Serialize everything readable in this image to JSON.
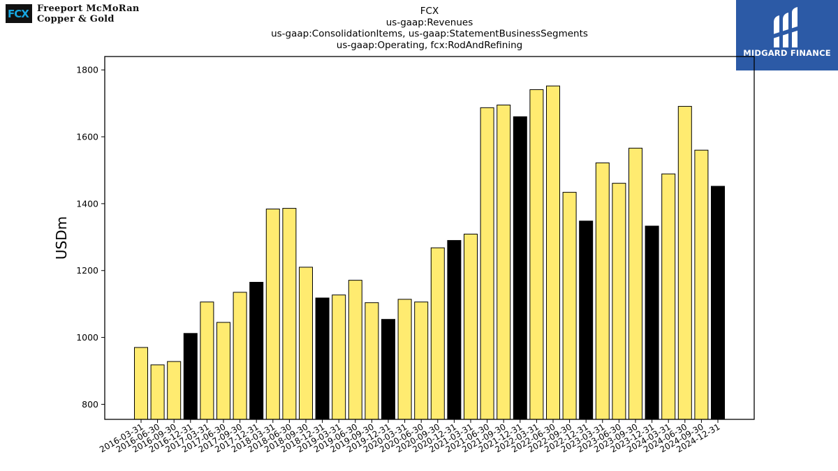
{
  "logos": {
    "left_mark": "FCX",
    "left_line1": "Freeport McMoRan",
    "left_line2": "Copper & Gold",
    "right_text": "MIDGARD FINANCE"
  },
  "chart_data": {
    "type": "bar",
    "title": [
      "FCX",
      "us-gaap:Revenues",
      "us-gaap:ConsolidationItems, us-gaap:StatementBusinessSegments",
      "us-gaap:Operating, fcx:RodAndRefining"
    ],
    "xlabel": "",
    "ylabel": "USDm",
    "ylim": [
      755,
      1840
    ],
    "yticks": [
      800,
      1000,
      1200,
      1400,
      1600,
      1800
    ],
    "grid": false,
    "colors": {
      "quarter": "#ffeb70",
      "year_end": "#000000",
      "edge": "#000000"
    },
    "categories": [
      "2016-03-31",
      "2016-06-30",
      "2016-09-30",
      "2016-12-31",
      "2017-03-31",
      "2017-06-30",
      "2017-09-30",
      "2017-12-31",
      "2018-03-31",
      "2018-06-30",
      "2018-09-30",
      "2018-12-31",
      "2019-03-31",
      "2019-06-30",
      "2019-09-30",
      "2019-12-31",
      "2020-03-31",
      "2020-06-30",
      "2020-09-30",
      "2020-12-31",
      "2021-03-31",
      "2021-06-30",
      "2021-09-30",
      "2021-12-31",
      "2022-03-31",
      "2022-06-30",
      "2022-09-30",
      "2022-12-31",
      "2023-03-31",
      "2023-06-30",
      "2023-09-30",
      "2023-12-31",
      "2024-03-31",
      "2024-06-30",
      "2024-09-30",
      "2024-12-31"
    ],
    "values": [
      970,
      918,
      928,
      1012,
      1106,
      1045,
      1135,
      1165,
      1384,
      1386,
      1210,
      1118,
      1127,
      1171,
      1104,
      1054,
      1114,
      1106,
      1268,
      1290,
      1309,
      1687,
      1695,
      1660,
      1741,
      1752,
      1434,
      1348,
      1522,
      1461,
      1566,
      1333,
      1489,
      1691,
      1560,
      1452
    ]
  }
}
